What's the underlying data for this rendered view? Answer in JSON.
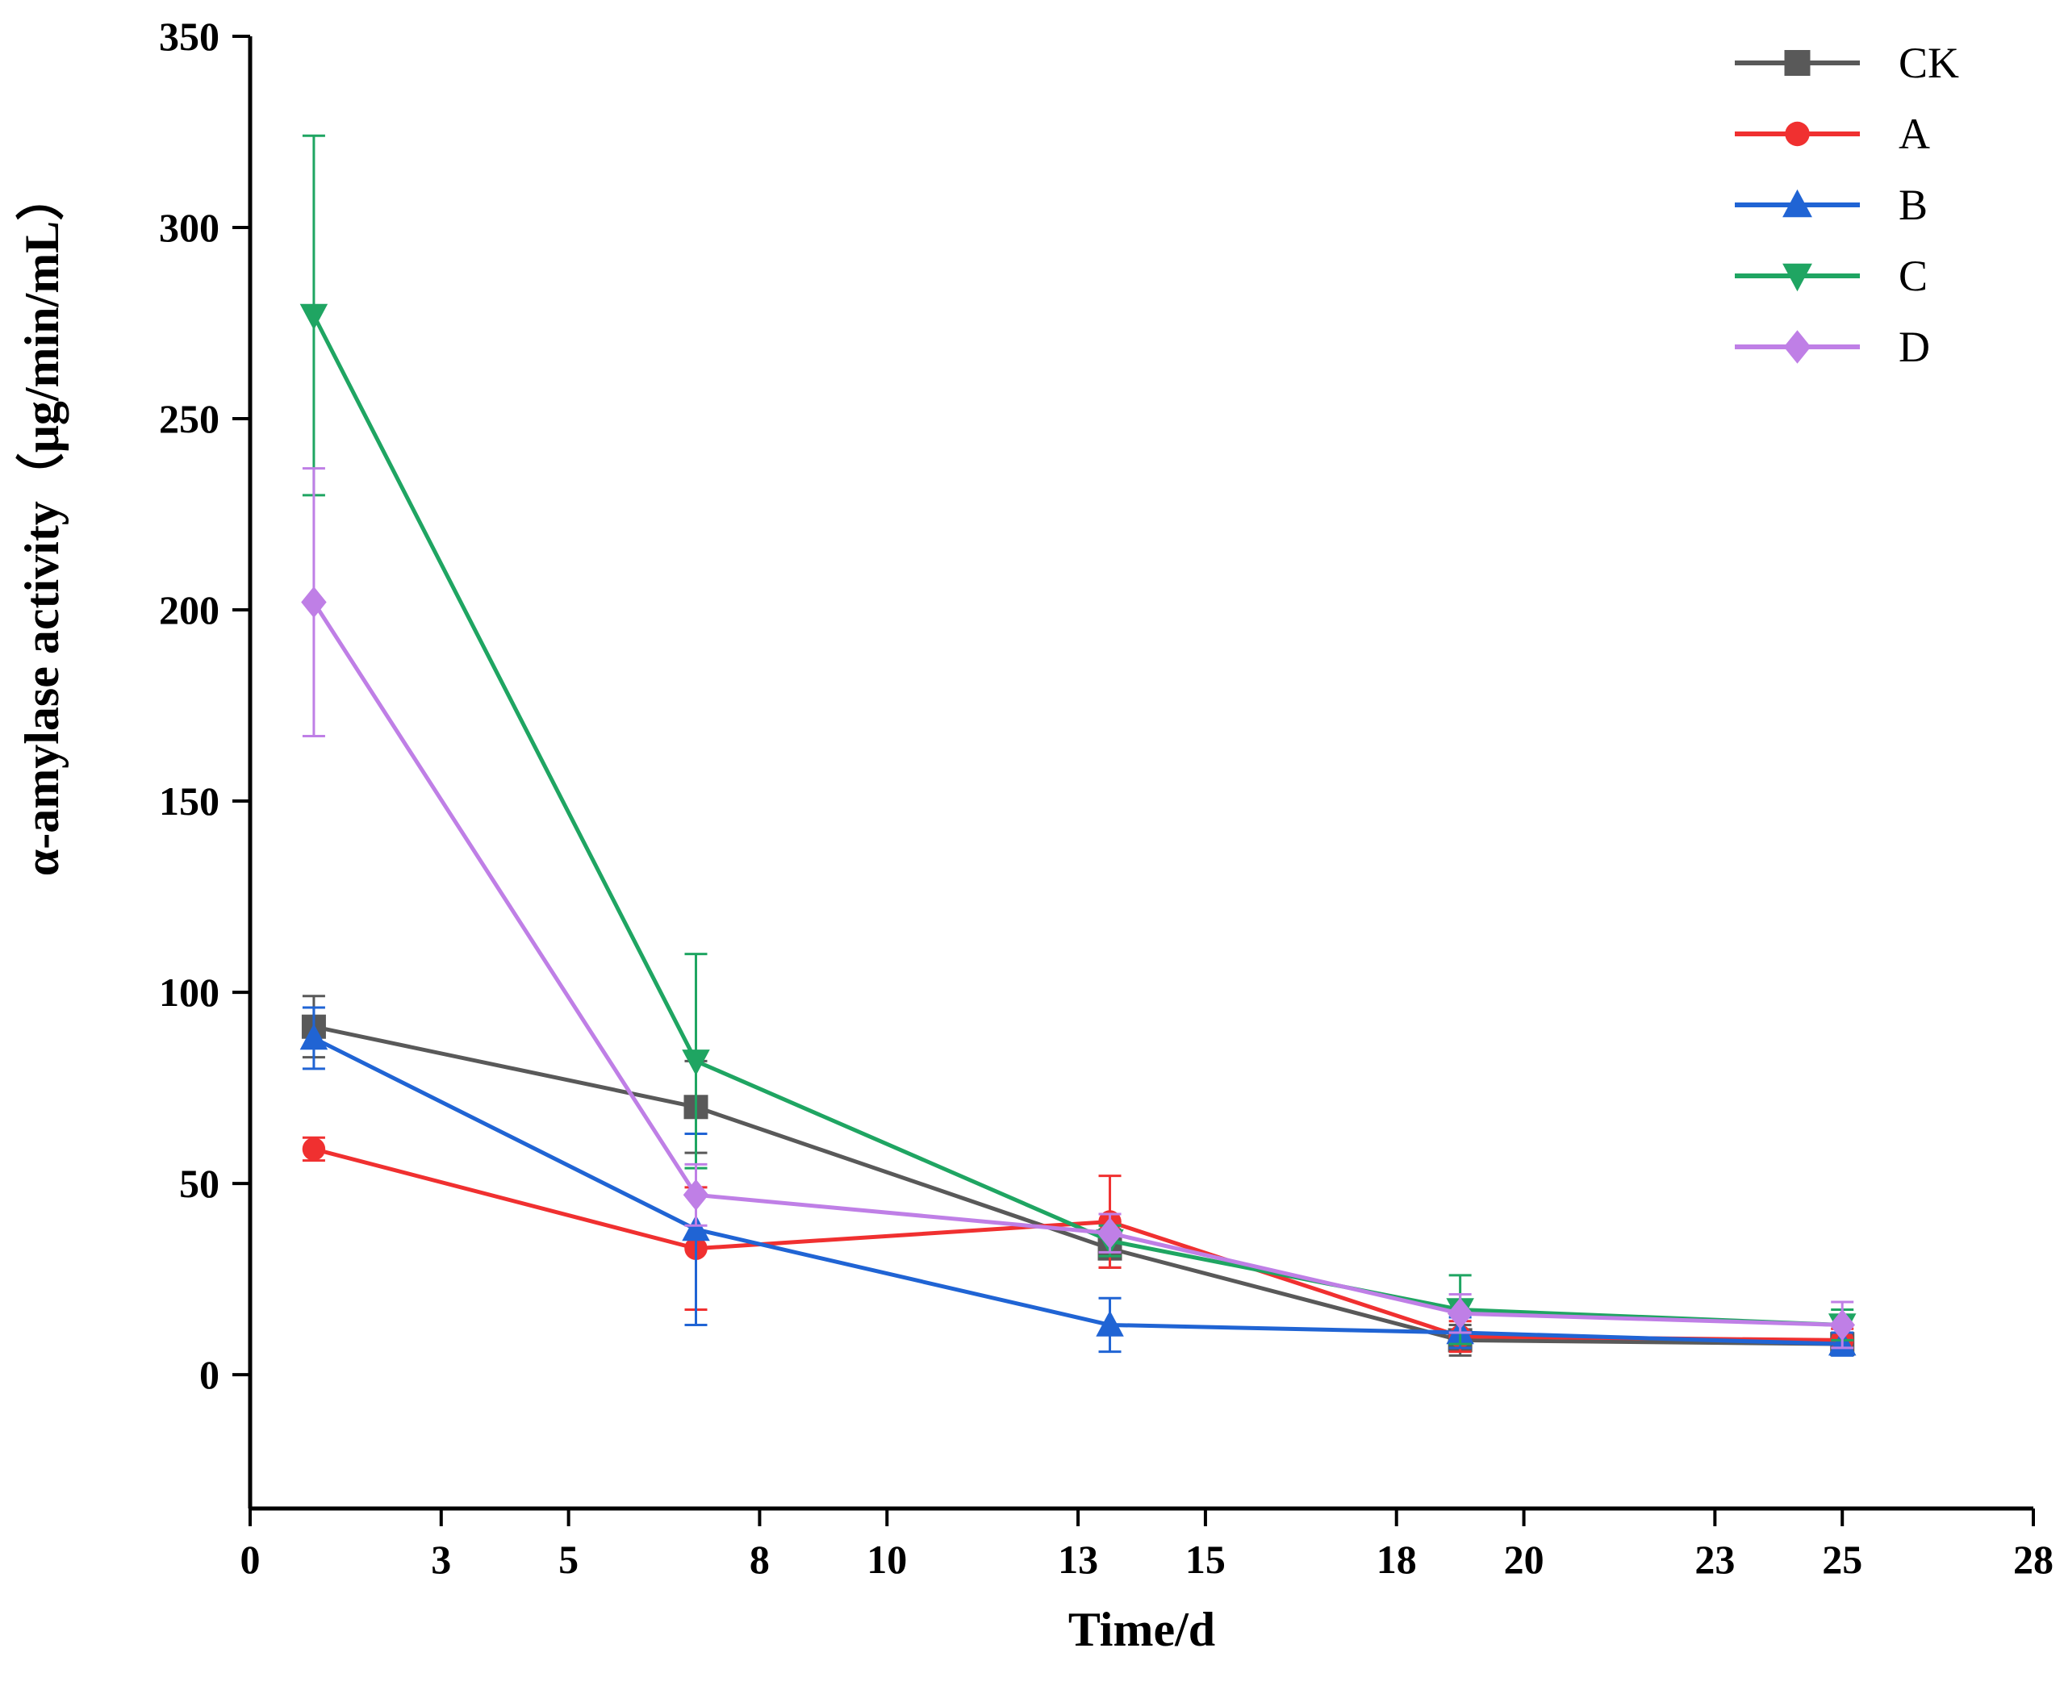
{
  "chart_data": {
    "type": "line",
    "title": "",
    "xlabel": "Time/d",
    "ylabel": "α-amylase activity（μg/min/mL）",
    "xlim": [
      0,
      28
    ],
    "ylim": [
      0,
      350
    ],
    "xticks": [
      0,
      3,
      5,
      8,
      10,
      13,
      15,
      18,
      20,
      23,
      25,
      28
    ],
    "yticks": [
      0,
      50,
      100,
      150,
      200,
      250,
      300,
      350
    ],
    "x": [
      1,
      7,
      13.5,
      19,
      25
    ],
    "grid": false,
    "legend_position": "top-right",
    "error_bars": true,
    "series": [
      {
        "name": "CK",
        "color": "#595959",
        "marker": "square",
        "values": [
          91,
          70,
          33,
          9,
          8
        ],
        "errors": [
          8,
          12,
          5,
          4,
          2
        ]
      },
      {
        "name": "A",
        "color": "#f03030",
        "marker": "circle",
        "values": [
          59,
          33,
          40,
          10,
          9
        ],
        "errors": [
          3,
          16,
          12,
          4,
          3
        ]
      },
      {
        "name": "B",
        "color": "#2064d4",
        "marker": "triangle-up",
        "values": [
          88,
          38,
          13,
          11,
          8
        ],
        "errors": [
          8,
          25,
          7,
          4,
          3
        ]
      },
      {
        "name": "C",
        "color": "#1fa562",
        "marker": "triangle-down",
        "values": [
          277,
          82,
          35,
          17,
          13
        ],
        "errors": [
          47,
          28,
          4,
          9,
          4
        ]
      },
      {
        "name": "D",
        "color": "#bf7fe6",
        "marker": "diamond",
        "values": [
          202,
          47,
          37,
          16,
          13
        ],
        "errors": [
          35,
          8,
          5,
          5,
          6
        ]
      }
    ]
  }
}
